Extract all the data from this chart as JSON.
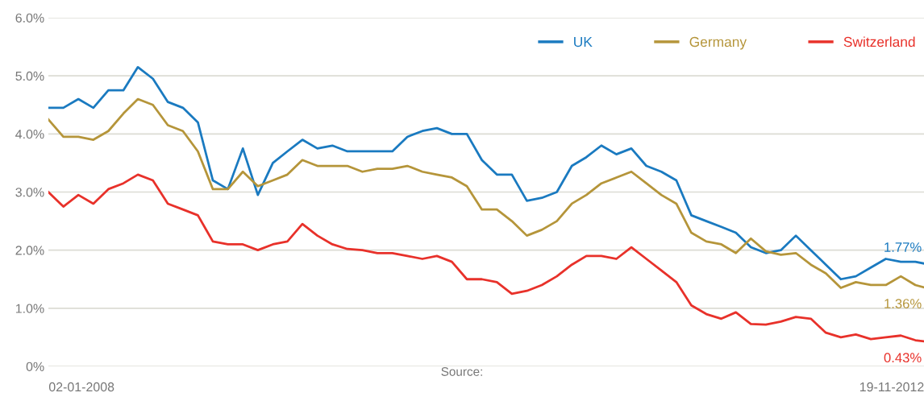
{
  "chart_data": {
    "type": "line",
    "x": [
      "2007-10-21",
      "2007-11-23",
      "2007-12-26",
      "2008-01-28",
      "2008-03-01",
      "2008-04-03",
      "2008-05-05",
      "2008-06-07",
      "2008-07-10",
      "2008-08-12",
      "2008-09-14",
      "2008-10-17",
      "2008-11-19",
      "2008-12-22",
      "2009-01-24",
      "2009-02-26",
      "2009-03-30",
      "2009-05-02",
      "2009-06-04",
      "2009-07-07",
      "2009-08-09",
      "2009-09-11",
      "2009-10-14",
      "2009-11-16",
      "2009-12-19",
      "2010-01-21",
      "2010-02-22",
      "2010-03-27",
      "2010-04-29",
      "2010-06-01",
      "2010-07-04",
      "2010-08-06",
      "2010-09-08",
      "2010-10-11",
      "2010-11-13",
      "2010-12-16",
      "2011-01-17",
      "2011-02-19",
      "2011-03-24",
      "2011-04-26",
      "2011-05-29",
      "2011-07-01",
      "2011-08-03",
      "2011-09-05",
      "2011-10-08",
      "2011-11-10",
      "2011-12-12",
      "2012-01-14",
      "2012-02-16",
      "2012-03-20",
      "2012-04-22",
      "2012-05-25",
      "2012-06-27",
      "2012-07-30",
      "2012-09-01",
      "2012-10-04",
      "2012-11-06",
      "2012-12-09",
      "2013-01-10",
      "2013-01-29"
    ],
    "series": [
      {
        "name": "UK",
        "color": "#1a7ac0",
        "values": [
          4.45,
          4.45,
          4.6,
          4.45,
          4.75,
          4.75,
          5.15,
          4.95,
          4.55,
          4.45,
          4.2,
          3.2,
          3.05,
          3.75,
          2.95,
          3.5,
          3.7,
          3.9,
          3.75,
          3.8,
          3.7,
          3.7,
          3.7,
          3.7,
          3.95,
          4.05,
          4.1,
          4.0,
          4.0,
          3.55,
          3.3,
          3.3,
          2.85,
          2.9,
          3.0,
          3.45,
          3.6,
          3.8,
          3.65,
          3.75,
          3.45,
          3.35,
          3.2,
          2.6,
          2.5,
          2.4,
          2.3,
          2.05,
          1.95,
          2.0,
          2.25,
          2.0,
          1.75,
          1.5,
          1.55,
          1.7,
          1.85,
          1.8,
          1.8,
          1.77
        ]
      },
      {
        "name": "Germany",
        "color": "#b5953a",
        "values": [
          4.25,
          3.95,
          3.95,
          3.9,
          4.05,
          4.35,
          4.6,
          4.5,
          4.15,
          4.05,
          3.7,
          3.05,
          3.05,
          3.35,
          3.1,
          3.2,
          3.3,
          3.55,
          3.45,
          3.45,
          3.45,
          3.35,
          3.4,
          3.4,
          3.45,
          3.35,
          3.3,
          3.25,
          3.1,
          2.7,
          2.7,
          2.5,
          2.25,
          2.35,
          2.5,
          2.8,
          2.95,
          3.15,
          3.25,
          3.35,
          3.15,
          2.95,
          2.8,
          2.3,
          2.15,
          2.1,
          1.95,
          2.2,
          1.98,
          1.92,
          1.95,
          1.75,
          1.6,
          1.35,
          1.45,
          1.4,
          1.4,
          1.55,
          1.4,
          1.36
        ]
      },
      {
        "name": "Switzerland",
        "color": "#e8312a",
        "values": [
          3.0,
          2.75,
          2.95,
          2.8,
          3.05,
          3.15,
          3.3,
          3.2,
          2.8,
          2.7,
          2.6,
          2.15,
          2.1,
          2.1,
          2.0,
          2.1,
          2.15,
          2.45,
          2.25,
          2.1,
          2.02,
          2.0,
          1.95,
          1.95,
          1.9,
          1.85,
          1.9,
          1.8,
          1.5,
          1.5,
          1.45,
          1.25,
          1.3,
          1.4,
          1.55,
          1.75,
          1.9,
          1.9,
          1.85,
          2.05,
          1.85,
          1.65,
          1.45,
          1.05,
          0.9,
          0.82,
          0.93,
          0.73,
          0.72,
          0.77,
          0.85,
          0.82,
          0.58,
          0.5,
          0.55,
          0.47,
          0.5,
          0.53,
          0.45,
          0.43
        ]
      }
    ],
    "xlim": [
      "2007-10-21",
      "2013-01-29"
    ],
    "xticks": [
      {
        "value": "2008-01-02",
        "label": "02-01-2008"
      },
      {
        "value": "2012-11-19",
        "label": "19-11-2012"
      }
    ],
    "ylim": [
      0,
      6
    ],
    "yticks": [
      {
        "value": 0,
        "label": "0%"
      },
      {
        "value": 1,
        "label": "1.0%"
      },
      {
        "value": 2,
        "label": "2.0%"
      },
      {
        "value": 3,
        "label": "3.0%"
      },
      {
        "value": 4,
        "label": "4.0%"
      },
      {
        "value": 5,
        "label": "5.0%"
      },
      {
        "value": 6,
        "label": "6.0%"
      }
    ],
    "grid": "y",
    "legend": "top right",
    "annotations": [
      {
        "text": "1.77%",
        "x": "2013-01-29",
        "y": 1.77
      },
      {
        "text": "1.36%",
        "x": "2013-01-29",
        "y": 1.36
      },
      {
        "text": "0.43%",
        "x": "2013-01-29",
        "y": 0.43
      },
      "Source:"
    ]
  }
}
